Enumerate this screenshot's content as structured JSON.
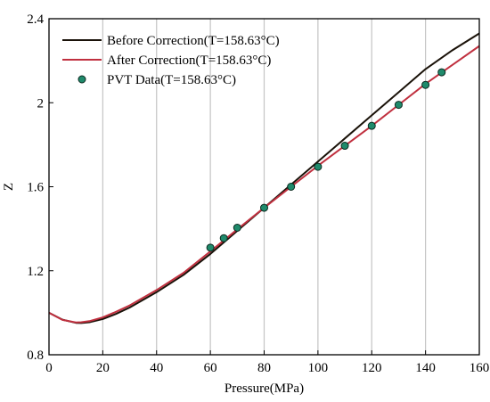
{
  "chart_data": {
    "type": "line",
    "xlabel": "Pressure(MPa)",
    "ylabel": "Z",
    "xlim": [
      0,
      160
    ],
    "ylim": [
      0.8,
      2.4
    ],
    "xticks": [
      0,
      20,
      40,
      60,
      80,
      100,
      120,
      140,
      160
    ],
    "yticks": [
      0.8,
      1.2,
      1.6,
      2,
      2.4
    ],
    "xtick_labels": [
      "0",
      "20",
      "40",
      "60",
      "80",
      "100",
      "120",
      "140",
      "160"
    ],
    "ytick_labels": [
      "0.8",
      "1.2",
      "1.6",
      "2",
      "2.4"
    ],
    "grid": "vertical",
    "legend_position": "top-left",
    "series": [
      {
        "name": "Before Correction(T=158.63°C)",
        "kind": "line",
        "color": "#1a1209",
        "x": [
          0,
          5,
          10,
          12,
          15,
          20,
          25,
          30,
          40,
          50,
          60,
          70,
          80,
          90,
          100,
          110,
          120,
          130,
          140,
          150,
          160
        ],
        "y": [
          1.0,
          0.967,
          0.952,
          0.951,
          0.955,
          0.97,
          0.995,
          1.025,
          1.098,
          1.18,
          1.28,
          1.39,
          1.5,
          1.61,
          1.72,
          1.83,
          1.94,
          2.05,
          2.16,
          2.25,
          2.33
        ]
      },
      {
        "name": "After Correction(T=158.63°C)",
        "kind": "line",
        "color": "#c0303f",
        "x": [
          0,
          5,
          10,
          12,
          15,
          20,
          25,
          30,
          40,
          50,
          60,
          70,
          80,
          90,
          100,
          110,
          120,
          130,
          140,
          150,
          160
        ],
        "y": [
          1.0,
          0.966,
          0.954,
          0.955,
          0.96,
          0.978,
          1.005,
          1.035,
          1.108,
          1.19,
          1.292,
          1.397,
          1.5,
          1.6,
          1.7,
          1.795,
          1.89,
          1.99,
          2.09,
          2.18,
          2.27
        ]
      },
      {
        "name": "PVT Data(T=158.63°C)",
        "kind": "scatter",
        "color": "#1f8a6b",
        "x": [
          60,
          65,
          70,
          80,
          90,
          100,
          110,
          120,
          130,
          140,
          146
        ],
        "y": [
          1.31,
          1.355,
          1.405,
          1.5,
          1.6,
          1.695,
          1.795,
          1.89,
          1.99,
          2.085,
          2.145
        ]
      }
    ]
  }
}
